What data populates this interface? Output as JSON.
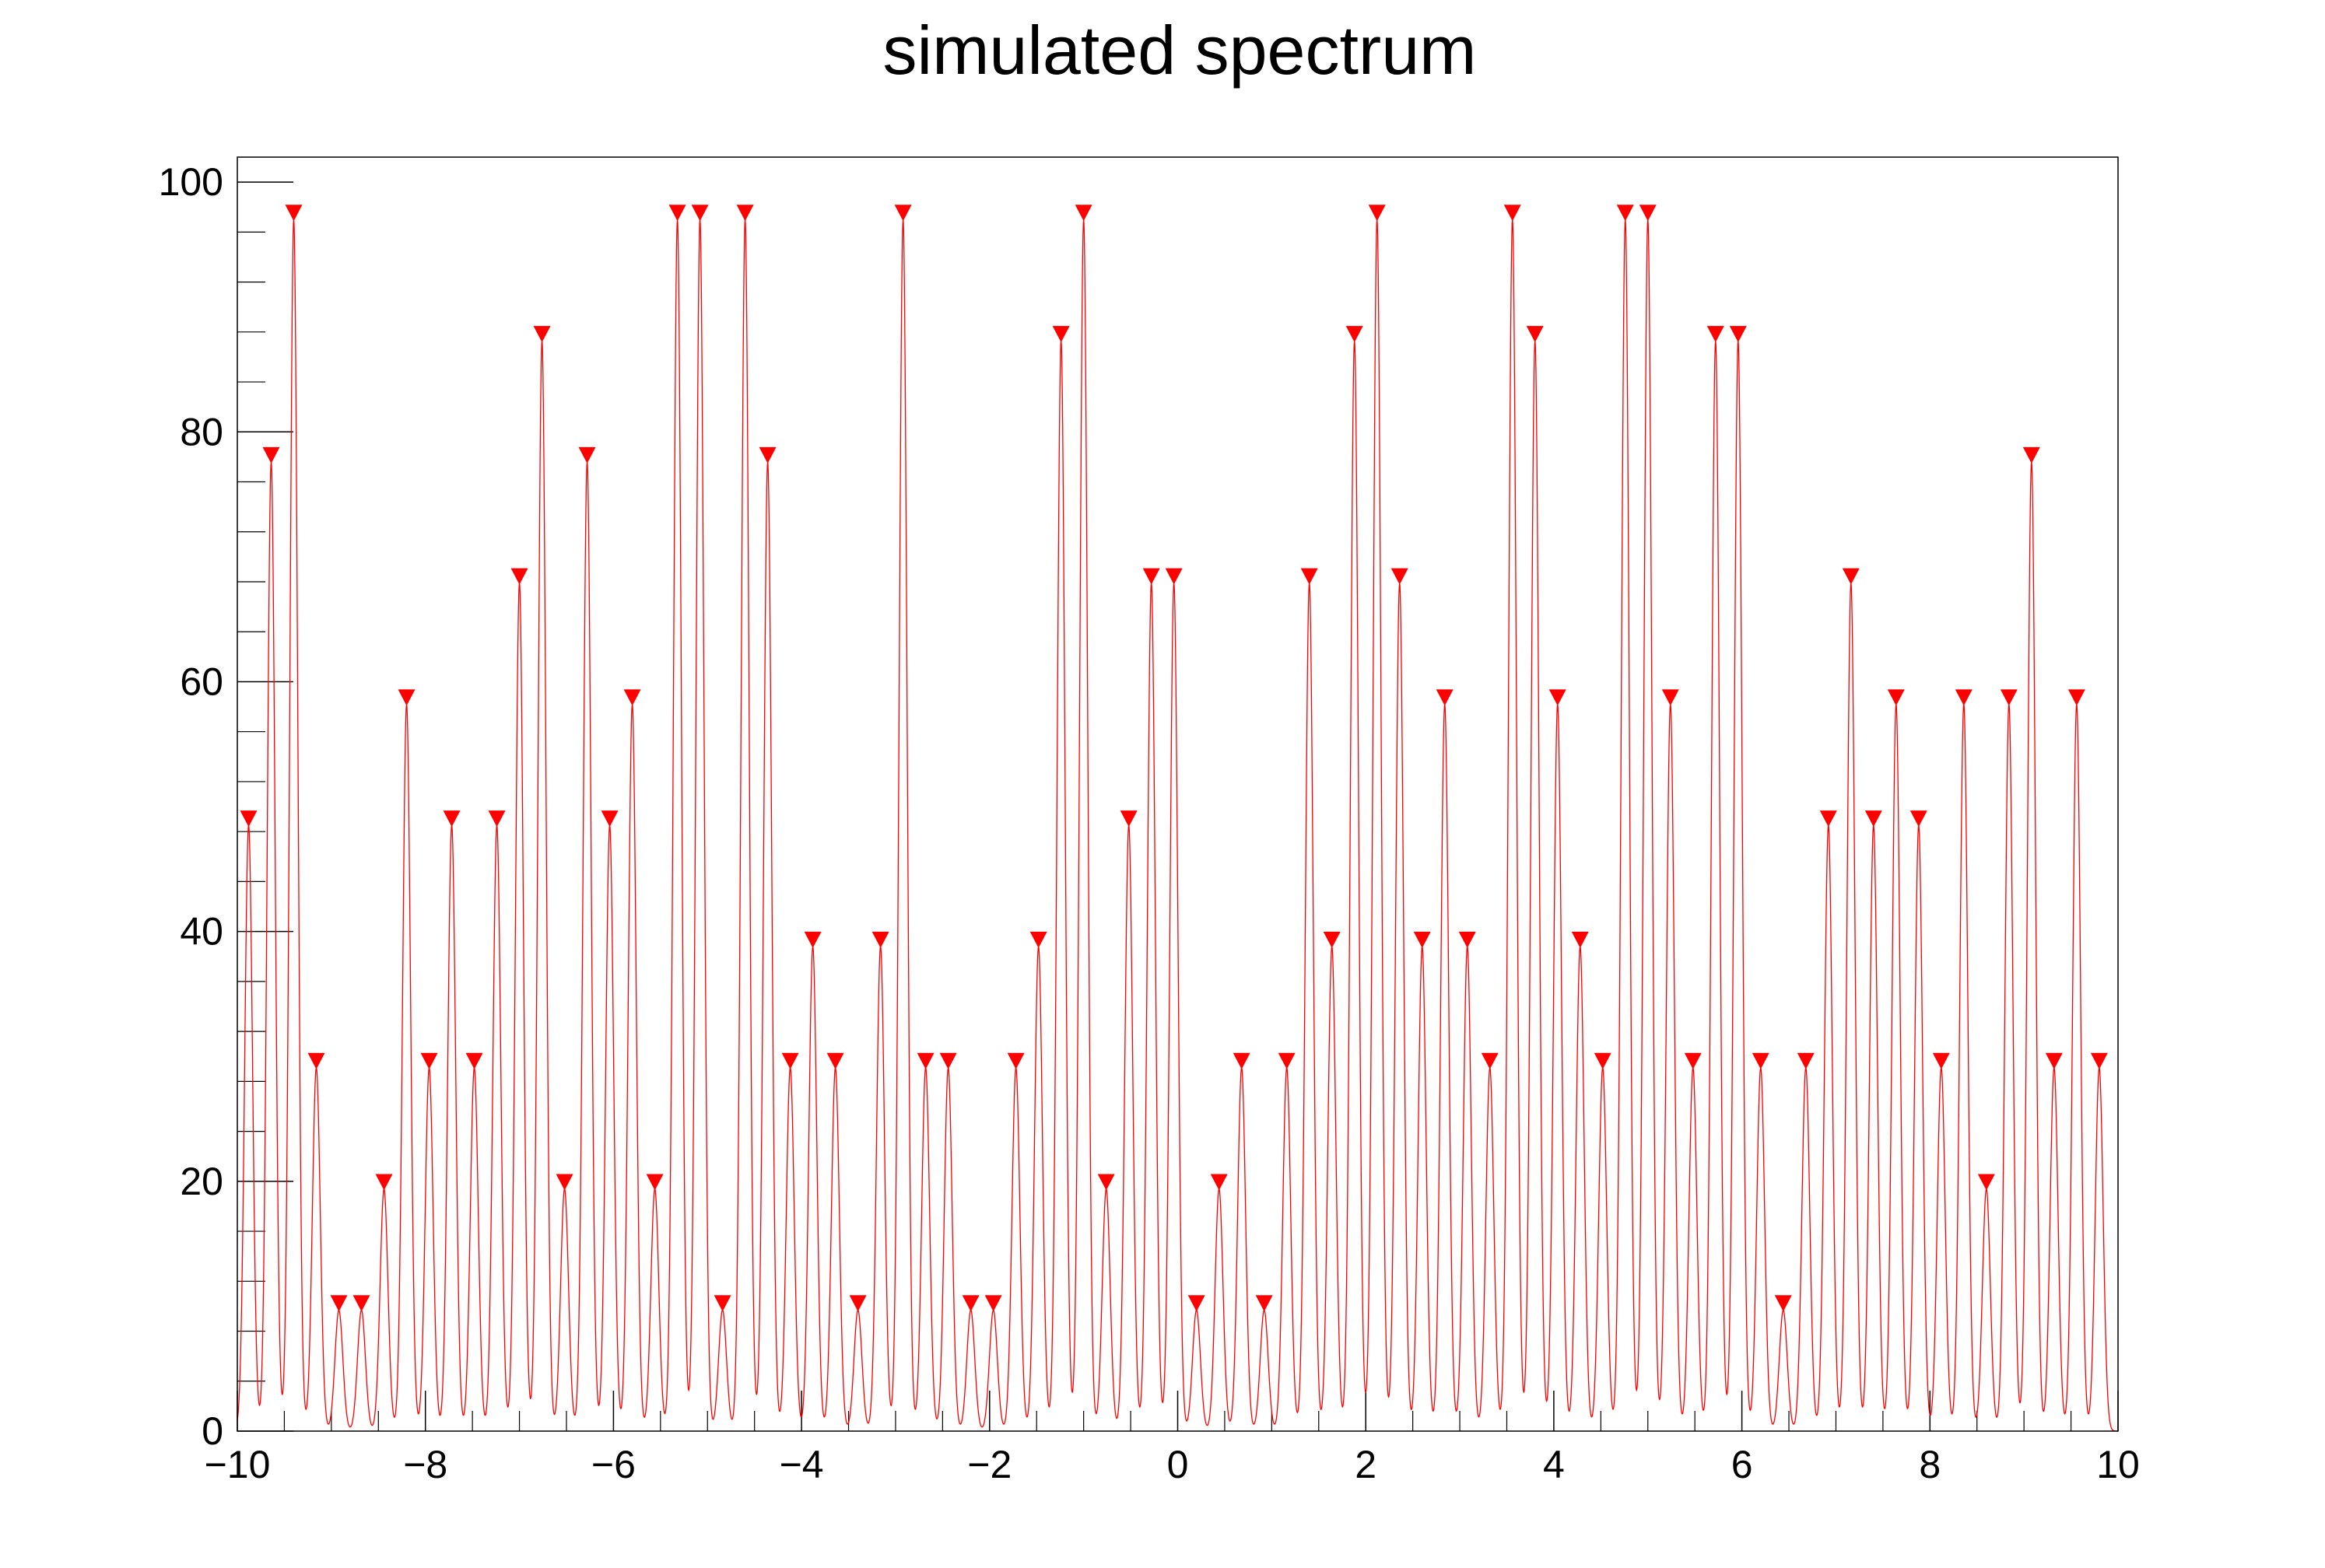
{
  "chart_data": {
    "type": "line",
    "title": "simulated spectrum",
    "xlabel": "",
    "ylabel": "",
    "xlim": [
      -10,
      10
    ],
    "ylim": [
      0,
      102
    ],
    "peak_width": 0.042,
    "x_ticks": [
      {
        "value": -10,
        "label": "−10"
      },
      {
        "value": -8,
        "label": "−8"
      },
      {
        "value": -6,
        "label": "−6"
      },
      {
        "value": -4,
        "label": "−4"
      },
      {
        "value": -2,
        "label": "−2"
      },
      {
        "value": 0,
        "label": "0"
      },
      {
        "value": 2,
        "label": "2"
      },
      {
        "value": 4,
        "label": "4"
      },
      {
        "value": 6,
        "label": "6"
      },
      {
        "value": 8,
        "label": "8"
      },
      {
        "value": 10,
        "label": "10"
      }
    ],
    "y_ticks": [
      {
        "value": 0,
        "label": "0"
      },
      {
        "value": 20,
        "label": "20"
      },
      {
        "value": 40,
        "label": "40"
      },
      {
        "value": 60,
        "label": "60"
      },
      {
        "value": 80,
        "label": "80"
      },
      {
        "value": 100,
        "label": "100"
      }
    ],
    "grid": false,
    "legend": "none",
    "colors": {
      "line": "#ff0000",
      "marker": "#ff0000",
      "frame": "#000000"
    },
    "series": [
      {
        "values": [],
        "peaks": [
          {
            "x": -9.88,
            "y": 48.5
          },
          {
            "x": -9.64,
            "y": 77.6
          },
          {
            "x": -9.4,
            "y": 97.0
          },
          {
            "x": -9.16,
            "y": 29.1
          },
          {
            "x": -8.92,
            "y": 9.7
          },
          {
            "x": -8.68,
            "y": 9.7
          },
          {
            "x": -8.44,
            "y": 19.4
          },
          {
            "x": -8.2,
            "y": 58.2
          },
          {
            "x": -7.96,
            "y": 29.1
          },
          {
            "x": -7.72,
            "y": 48.5
          },
          {
            "x": -7.48,
            "y": 29.1
          },
          {
            "x": -7.24,
            "y": 48.5
          },
          {
            "x": -7.0,
            "y": 67.9
          },
          {
            "x": -6.76,
            "y": 87.3
          },
          {
            "x": -6.52,
            "y": 19.4
          },
          {
            "x": -6.28,
            "y": 77.6
          },
          {
            "x": -6.04,
            "y": 48.5
          },
          {
            "x": -5.8,
            "y": 58.2
          },
          {
            "x": -5.56,
            "y": 19.4
          },
          {
            "x": -5.32,
            "y": 97.0
          },
          {
            "x": -5.08,
            "y": 97.0
          },
          {
            "x": -4.84,
            "y": 9.7
          },
          {
            "x": -4.6,
            "y": 97.0
          },
          {
            "x": -4.36,
            "y": 77.6
          },
          {
            "x": -4.12,
            "y": 29.1
          },
          {
            "x": -3.88,
            "y": 38.8
          },
          {
            "x": -3.64,
            "y": 29.1
          },
          {
            "x": -3.4,
            "y": 9.7
          },
          {
            "x": -3.16,
            "y": 38.8
          },
          {
            "x": -2.92,
            "y": 97.0
          },
          {
            "x": -2.68,
            "y": 29.1
          },
          {
            "x": -2.44,
            "y": 29.1
          },
          {
            "x": -2.2,
            "y": 9.7
          },
          {
            "x": -1.96,
            "y": 9.7
          },
          {
            "x": -1.72,
            "y": 29.1
          },
          {
            "x": -1.48,
            "y": 38.8
          },
          {
            "x": -1.24,
            "y": 87.3
          },
          {
            "x": -1.0,
            "y": 97.0
          },
          {
            "x": -0.76,
            "y": 19.4
          },
          {
            "x": -0.52,
            "y": 48.5
          },
          {
            "x": -0.28,
            "y": 67.9
          },
          {
            "x": -0.04,
            "y": 67.9
          },
          {
            "x": 0.2,
            "y": 9.7
          },
          {
            "x": 0.44,
            "y": 19.4
          },
          {
            "x": 0.68,
            "y": 29.1
          },
          {
            "x": 0.92,
            "y": 9.7
          },
          {
            "x": 1.16,
            "y": 29.1
          },
          {
            "x": 1.4,
            "y": 67.9
          },
          {
            "x": 1.64,
            "y": 38.8
          },
          {
            "x": 1.88,
            "y": 87.3
          },
          {
            "x": 2.12,
            "y": 97.0
          },
          {
            "x": 2.36,
            "y": 67.9
          },
          {
            "x": 2.6,
            "y": 38.8
          },
          {
            "x": 2.84,
            "y": 58.2
          },
          {
            "x": 3.08,
            "y": 38.8
          },
          {
            "x": 3.32,
            "y": 29.1
          },
          {
            "x": 3.56,
            "y": 97.0
          },
          {
            "x": 3.8,
            "y": 87.3
          },
          {
            "x": 4.04,
            "y": 58.2
          },
          {
            "x": 4.28,
            "y": 38.8
          },
          {
            "x": 4.52,
            "y": 29.1
          },
          {
            "x": 4.76,
            "y": 97.0
          },
          {
            "x": 5.0,
            "y": 97.0
          },
          {
            "x": 5.24,
            "y": 58.2
          },
          {
            "x": 5.48,
            "y": 29.1
          },
          {
            "x": 5.72,
            "y": 87.3
          },
          {
            "x": 5.96,
            "y": 87.3
          },
          {
            "x": 6.2,
            "y": 29.1
          },
          {
            "x": 6.44,
            "y": 9.7
          },
          {
            "x": 6.68,
            "y": 29.1
          },
          {
            "x": 6.92,
            "y": 48.5
          },
          {
            "x": 7.16,
            "y": 67.9
          },
          {
            "x": 7.4,
            "y": 48.5
          },
          {
            "x": 7.64,
            "y": 58.2
          },
          {
            "x": 7.88,
            "y": 48.5
          },
          {
            "x": 8.12,
            "y": 29.1
          },
          {
            "x": 8.36,
            "y": 58.2
          },
          {
            "x": 8.6,
            "y": 19.4
          },
          {
            "x": 8.84,
            "y": 58.2
          },
          {
            "x": 9.08,
            "y": 77.6
          },
          {
            "x": 9.32,
            "y": 29.1
          },
          {
            "x": 9.56,
            "y": 58.2
          },
          {
            "x": 9.8,
            "y": 29.1
          }
        ]
      }
    ]
  }
}
